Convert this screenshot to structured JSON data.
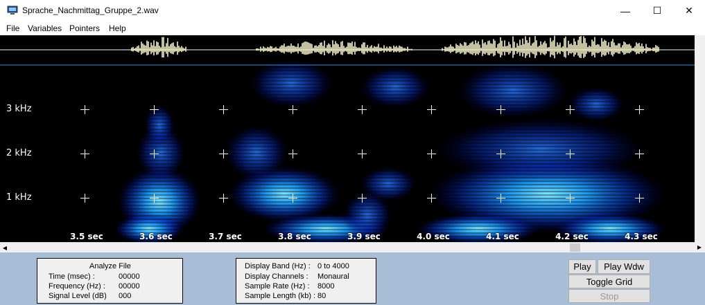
{
  "window": {
    "title": "Sprache_Nachmittag_Gruppe_2.wav",
    "minimize": "—",
    "maximize": "☐",
    "close": "✕"
  },
  "menu": [
    "File",
    "Variables",
    "Pointers",
    "Help"
  ],
  "spectrogram": {
    "freq_labels": [
      "3  kHz",
      "2  kHz",
      "1  kHz"
    ],
    "time_labels": [
      "3.5 sec",
      "3.6 sec",
      "3.7 sec",
      "3.8 sec",
      "3.9 sec",
      "4.0 sec",
      "4.1 sec",
      "4.2 sec",
      "4.3 sec"
    ]
  },
  "scroll": {
    "left": "◀",
    "right": "▶",
    "up": "▲",
    "down": "▼"
  },
  "analyze": {
    "title": "Analyze File",
    "rows": [
      {
        "label": "Time (msec) :",
        "value": "00000"
      },
      {
        "label": "Frequency (Hz) :",
        "value": "00000"
      },
      {
        "label": "Signal Level (dB)",
        "value": "000"
      }
    ]
  },
  "display_info": {
    "rows": [
      {
        "label": "Display Band (Hz) :",
        "value": "0 to 4000"
      },
      {
        "label": "Display Channels :",
        "value": "Monaural"
      },
      {
        "label": "Sample Rate (Hz) :",
        "value": "8000"
      },
      {
        "label": "Sample Length (kb) :",
        "value": "80"
      }
    ]
  },
  "buttons": {
    "play": "Play",
    "play_wdw": "Play Wdw",
    "toggle_grid": "Toggle Grid",
    "stop": "Stop"
  }
}
